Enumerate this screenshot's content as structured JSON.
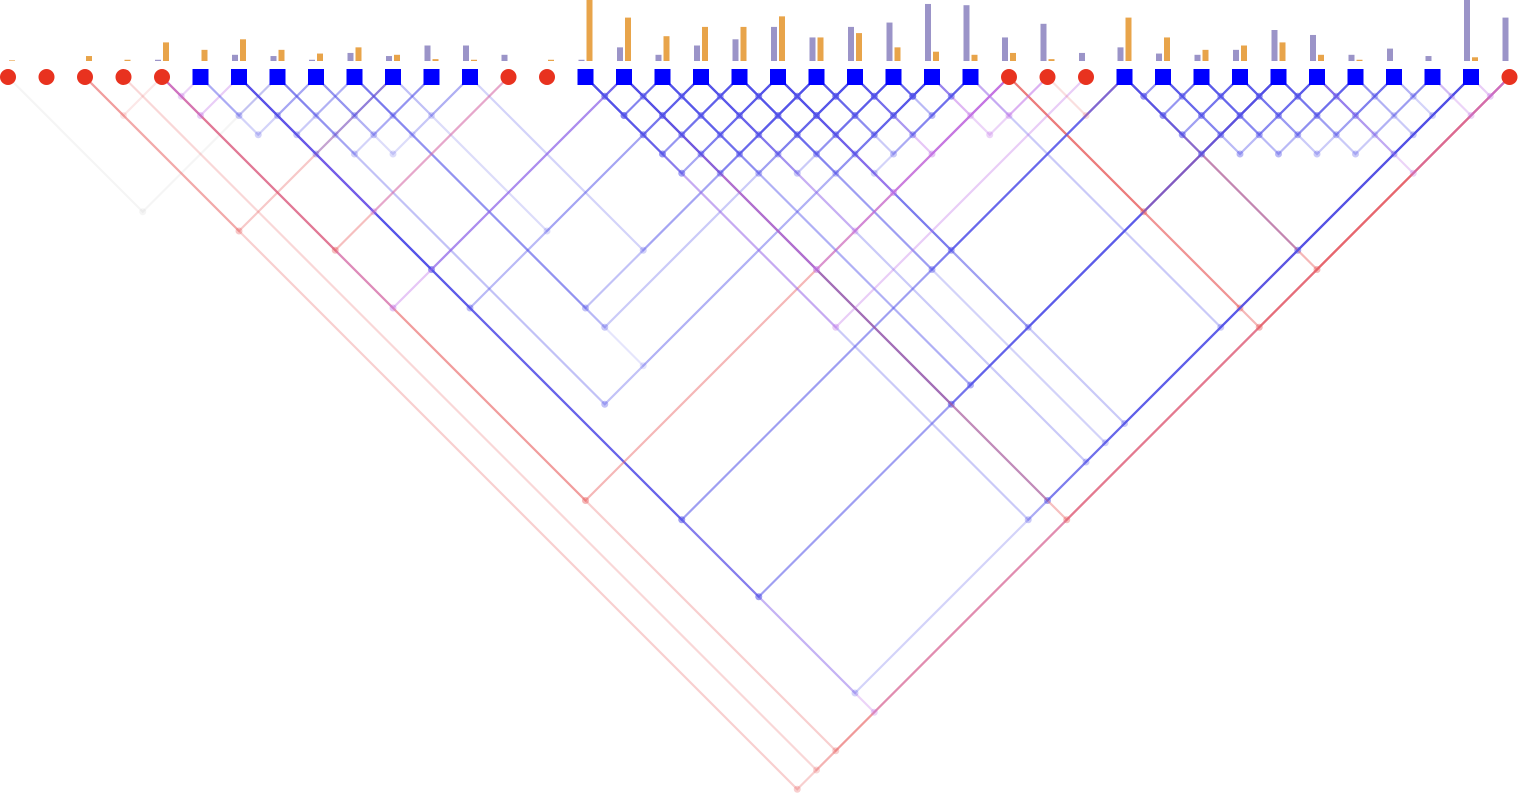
{
  "tokens": [
    {
      "shape": "circle",
      "bar_a": 0,
      "bar_b": 0.01
    },
    {
      "shape": "circle",
      "bar_a": 0,
      "bar_b": 0
    },
    {
      "shape": "circle",
      "bar_a": 0,
      "bar_b": 0.08
    },
    {
      "shape": "circle",
      "bar_a": 0,
      "bar_b": 0.02
    },
    {
      "shape": "circle",
      "bar_a": 0.02,
      "bar_b": 0.3
    },
    {
      "shape": "square",
      "bar_a": 0,
      "bar_b": 0.18
    },
    {
      "shape": "square",
      "bar_a": 0.1,
      "bar_b": 0.35
    },
    {
      "shape": "square",
      "bar_a": 0.08,
      "bar_b": 0.18
    },
    {
      "shape": "square",
      "bar_a": 0.02,
      "bar_b": 0.12
    },
    {
      "shape": "square",
      "bar_a": 0.13,
      "bar_b": 0.22
    },
    {
      "shape": "square",
      "bar_a": 0.08,
      "bar_b": 0.1
    },
    {
      "shape": "square",
      "bar_a": 0.25,
      "bar_b": 0.03
    },
    {
      "shape": "square",
      "bar_a": 0.25,
      "bar_b": 0.02
    },
    {
      "shape": "circle",
      "bar_a": 0.1,
      "bar_b": 0
    },
    {
      "shape": "circle",
      "bar_a": 0,
      "bar_b": 0.02
    },
    {
      "shape": "square",
      "bar_a": 0.02,
      "bar_b": 1.0
    },
    {
      "shape": "square",
      "bar_a": 0.22,
      "bar_b": 0.7
    },
    {
      "shape": "square",
      "bar_a": 0.1,
      "bar_b": 0.4
    },
    {
      "shape": "square",
      "bar_a": 0.25,
      "bar_b": 0.55
    },
    {
      "shape": "square",
      "bar_a": 0.35,
      "bar_b": 0.55
    },
    {
      "shape": "square",
      "bar_a": 0.55,
      "bar_b": 0.72
    },
    {
      "shape": "square",
      "bar_a": 0.38,
      "bar_b": 0.38
    },
    {
      "shape": "square",
      "bar_a": 0.55,
      "bar_b": 0.45
    },
    {
      "shape": "square",
      "bar_a": 0.62,
      "bar_b": 0.22
    },
    {
      "shape": "square",
      "bar_a": 0.92,
      "bar_b": 0.15
    },
    {
      "shape": "square",
      "bar_a": 0.9,
      "bar_b": 0.1
    },
    {
      "shape": "circle",
      "bar_a": 0.38,
      "bar_b": 0.13
    },
    {
      "shape": "circle",
      "bar_a": 0.6,
      "bar_b": 0.03
    },
    {
      "shape": "circle",
      "bar_a": 0.13,
      "bar_b": 0
    },
    {
      "shape": "square",
      "bar_a": 0.22,
      "bar_b": 0.7
    },
    {
      "shape": "square",
      "bar_a": 0.12,
      "bar_b": 0.38
    },
    {
      "shape": "square",
      "bar_a": 0.1,
      "bar_b": 0.18
    },
    {
      "shape": "square",
      "bar_a": 0.18,
      "bar_b": 0.25
    },
    {
      "shape": "square",
      "bar_a": 0.5,
      "bar_b": 0.3
    },
    {
      "shape": "square",
      "bar_a": 0.42,
      "bar_b": 0.1
    },
    {
      "shape": "square",
      "bar_a": 0.1,
      "bar_b": 0.02
    },
    {
      "shape": "square",
      "bar_a": 0.2,
      "bar_b": 0
    },
    {
      "shape": "square",
      "bar_a": 0.08,
      "bar_b": 0
    },
    {
      "shape": "square",
      "bar_a": 1.0,
      "bar_b": 0.06
    },
    {
      "shape": "circle",
      "bar_a": 0.7,
      "bar_b": 0
    }
  ],
  "colors": {
    "circle": "#e8321f",
    "square": "#0000ff",
    "bar_a": "#9b94c8",
    "bar_b": "#e8a44a"
  },
  "links": [
    [
      0,
      7,
      0.15,
      "#bbbbbb"
    ],
    [
      2,
      39,
      0.3,
      "#e86060"
    ],
    [
      3,
      39,
      0.25,
      "#e86060"
    ],
    [
      4,
      39,
      0.3,
      "#e86060"
    ],
    [
      6,
      39,
      0.3,
      "#c070e8"
    ],
    [
      6,
      38,
      0.25,
      "#5050e8"
    ],
    [
      6,
      33,
      0.55,
      "#5050e8"
    ],
    [
      6,
      29,
      0.55,
      "#5050e8"
    ],
    [
      4,
      26,
      0.45,
      "#e86060"
    ],
    [
      7,
      24,
      0.35,
      "#5050e8"
    ],
    [
      9,
      22,
      0.3,
      "#5050e8"
    ],
    [
      9,
      21,
      0.35,
      "#5050e8"
    ],
    [
      9,
      24,
      0.15,
      "#5050e8"
    ],
    [
      12,
      21,
      0.25,
      "#5050e8"
    ],
    [
      10,
      18,
      0.2,
      "#5050e8"
    ],
    [
      6,
      16,
      0.55,
      "#5050e8"
    ],
    [
      6,
      18,
      0.4,
      "#5050e8"
    ],
    [
      4,
      16,
      0.4,
      "#c070e8"
    ],
    [
      4,
      13,
      0.4,
      "#e86060"
    ],
    [
      6,
      13,
      0.3,
      "#c070e8"
    ],
    [
      2,
      10,
      0.35,
      "#e86060"
    ],
    [
      4,
      6,
      0.35,
      "#c070e8"
    ],
    [
      2,
      4,
      0.15,
      "#e86060"
    ],
    [
      4,
      5,
      0.3,
      "#c070e8"
    ],
    [
      5,
      7,
      0.3,
      "#5050e8"
    ],
    [
      6,
      8,
      0.35,
      "#5050e8"
    ],
    [
      7,
      9,
      0.2,
      "#5050e8"
    ],
    [
      8,
      10,
      0.3,
      "#5050e8"
    ],
    [
      9,
      11,
      0.25,
      "#5050e8"
    ],
    [
      10,
      12,
      0.2,
      "#5050e8"
    ],
    [
      5,
      8,
      0.25,
      "#5050e8"
    ],
    [
      6,
      9,
      0.3,
      "#5050e8"
    ],
    [
      7,
      10,
      0.2,
      "#5050e8"
    ],
    [
      8,
      11,
      0.3,
      "#5050e8"
    ],
    [
      9,
      12,
      0.15,
      "#5050e8"
    ],
    [
      6,
      10,
      0.3,
      "#5050e8"
    ],
    [
      8,
      12,
      0.2,
      "#5050e8"
    ],
    [
      7,
      11,
      0.25,
      "#5050e8"
    ],
    [
      16,
      33,
      0.55,
      "#5050e8"
    ],
    [
      17,
      33,
      0.45,
      "#5050e8"
    ],
    [
      26,
      33,
      0.45,
      "#e86060"
    ],
    [
      26,
      39,
      0.45,
      "#e86060"
    ],
    [
      26,
      38,
      0.4,
      "#e86060"
    ],
    [
      25,
      38,
      0.3,
      "#5050e8"
    ],
    [
      29,
      38,
      0.5,
      "#5050e8"
    ],
    [
      29,
      39,
      0.45,
      "#e86060"
    ],
    [
      16,
      38,
      0.5,
      "#5050e8"
    ],
    [
      16,
      39,
      0.4,
      "#e86060"
    ],
    [
      15,
      38,
      0.3,
      "#5050e8"
    ],
    [
      20,
      38,
      0.3,
      "#5050e8"
    ],
    [
      18,
      38,
      0.3,
      "#5050e8"
    ],
    [
      19,
      38,
      0.25,
      "#5050e8"
    ],
    [
      19,
      29,
      0.4,
      "#5050e8"
    ],
    [
      20,
      29,
      0.45,
      "#5050e8"
    ],
    [
      20,
      33,
      0.35,
      "#5050e8"
    ],
    [
      16,
      26,
      0.5,
      "#c070e8"
    ],
    [
      15,
      28,
      0.35,
      "#c070e8"
    ],
    [
      20,
      26,
      0.45,
      "#c070e8"
    ],
    [
      22,
      26,
      0.4,
      "#c070e8"
    ],
    [
      24,
      27,
      0.3,
      "#c070e8"
    ],
    [
      18,
      26,
      0.3,
      "#c070e8"
    ],
    [
      24,
      26,
      0.3,
      "#c070e8"
    ],
    [
      25,
      27,
      0.35,
      "#c070e8"
    ],
    [
      27,
      29,
      0.2,
      "#e86060"
    ],
    [
      15,
      20,
      0.5,
      "#5050e8"
    ],
    [
      16,
      21,
      0.4,
      "#5050e8"
    ],
    [
      17,
      22,
      0.35,
      "#5050e8"
    ],
    [
      18,
      23,
      0.3,
      "#5050e8"
    ],
    [
      19,
      24,
      0.3,
      "#5050e8"
    ],
    [
      20,
      25,
      0.25,
      "#5050e8"
    ],
    [
      15,
      19,
      0.6,
      "#5050e8"
    ],
    [
      16,
      20,
      0.45,
      "#5050e8"
    ],
    [
      17,
      21,
      0.5,
      "#5050e8"
    ],
    [
      18,
      22,
      0.4,
      "#5050e8"
    ],
    [
      19,
      23,
      0.45,
      "#5050e8"
    ],
    [
      20,
      24,
      0.4,
      "#5050e8"
    ],
    [
      21,
      25,
      0.3,
      "#5050e8"
    ],
    [
      15,
      18,
      0.55,
      "#5050e8"
    ],
    [
      16,
      19,
      0.5,
      "#5050e8"
    ],
    [
      17,
      20,
      0.45,
      "#5050e8"
    ],
    [
      18,
      21,
      0.5,
      "#5050e8"
    ],
    [
      19,
      22,
      0.55,
      "#5050e8"
    ],
    [
      20,
      23,
      0.5,
      "#5050e8"
    ],
    [
      21,
      24,
      0.5,
      "#5050e8"
    ],
    [
      22,
      25,
      0.4,
      "#5050e8"
    ],
    [
      15,
      17,
      0.7,
      "#5050e8"
    ],
    [
      16,
      18,
      0.6,
      "#5050e8"
    ],
    [
      17,
      19,
      0.5,
      "#5050e8"
    ],
    [
      18,
      20,
      0.55,
      "#5050e8"
    ],
    [
      19,
      21,
      0.6,
      "#5050e8"
    ],
    [
      20,
      22,
      0.7,
      "#5050e8"
    ],
    [
      21,
      23,
      0.6,
      "#5050e8"
    ],
    [
      22,
      24,
      0.6,
      "#5050e8"
    ],
    [
      23,
      25,
      0.4,
      "#5050e8"
    ],
    [
      15,
      16,
      0.6,
      "#5050e8"
    ],
    [
      16,
      17,
      0.5,
      "#5050e8"
    ],
    [
      17,
      18,
      0.4,
      "#5050e8"
    ],
    [
      18,
      19,
      0.5,
      "#5050e8"
    ],
    [
      19,
      20,
      0.6,
      "#5050e8"
    ],
    [
      20,
      21,
      0.6,
      "#5050e8"
    ],
    [
      21,
      22,
      0.7,
      "#5050e8"
    ],
    [
      22,
      23,
      0.7,
      "#5050e8"
    ],
    [
      23,
      24,
      0.8,
      "#5050e8"
    ],
    [
      24,
      25,
      0.5,
      "#5050e8"
    ],
    [
      29,
      33,
      0.5,
      "#5050e8"
    ],
    [
      30,
      34,
      0.4,
      "#5050e8"
    ],
    [
      31,
      35,
      0.4,
      "#5050e8"
    ],
    [
      32,
      36,
      0.3,
      "#5050e8"
    ],
    [
      33,
      37,
      0.3,
      "#5050e8"
    ],
    [
      34,
      38,
      0.35,
      "#5050e8"
    ],
    [
      29,
      32,
      0.55,
      "#5050e8"
    ],
    [
      30,
      33,
      0.5,
      "#5050e8"
    ],
    [
      31,
      34,
      0.45,
      "#5050e8"
    ],
    [
      32,
      35,
      0.4,
      "#5050e8"
    ],
    [
      33,
      36,
      0.35,
      "#5050e8"
    ],
    [
      34,
      37,
      0.2,
      "#5050e8"
    ],
    [
      35,
      38,
      0.3,
      "#5050e8"
    ],
    [
      29,
      31,
      0.6,
      "#5050e8"
    ],
    [
      30,
      32,
      0.55,
      "#5050e8"
    ],
    [
      31,
      33,
      0.6,
      "#5050e8"
    ],
    [
      32,
      34,
      0.5,
      "#5050e8"
    ],
    [
      33,
      35,
      0.5,
      "#5050e8"
    ],
    [
      34,
      36,
      0.4,
      "#5050e8"
    ],
    [
      35,
      37,
      0.2,
      "#5050e8"
    ],
    [
      36,
      38,
      0.25,
      "#5050e8"
    ],
    [
      29,
      30,
      0.6,
      "#5050e8"
    ],
    [
      30,
      31,
      0.5,
      "#5050e8"
    ],
    [
      31,
      32,
      0.5,
      "#5050e8"
    ],
    [
      32,
      33,
      0.6,
      "#5050e8"
    ],
    [
      33,
      34,
      0.6,
      "#5050e8"
    ],
    [
      34,
      35,
      0.4,
      "#5050e8"
    ],
    [
      35,
      36,
      0.3,
      "#5050e8"
    ],
    [
      36,
      37,
      0.25,
      "#5050e8"
    ],
    [
      37,
      38,
      0.2,
      "#5050e8"
    ],
    [
      37,
      39,
      0.3,
      "#c070e8"
    ],
    [
      38,
      39,
      0.35,
      "#c070e8"
    ],
    [
      34,
      39,
      0.3,
      "#c070e8"
    ]
  ]
}
